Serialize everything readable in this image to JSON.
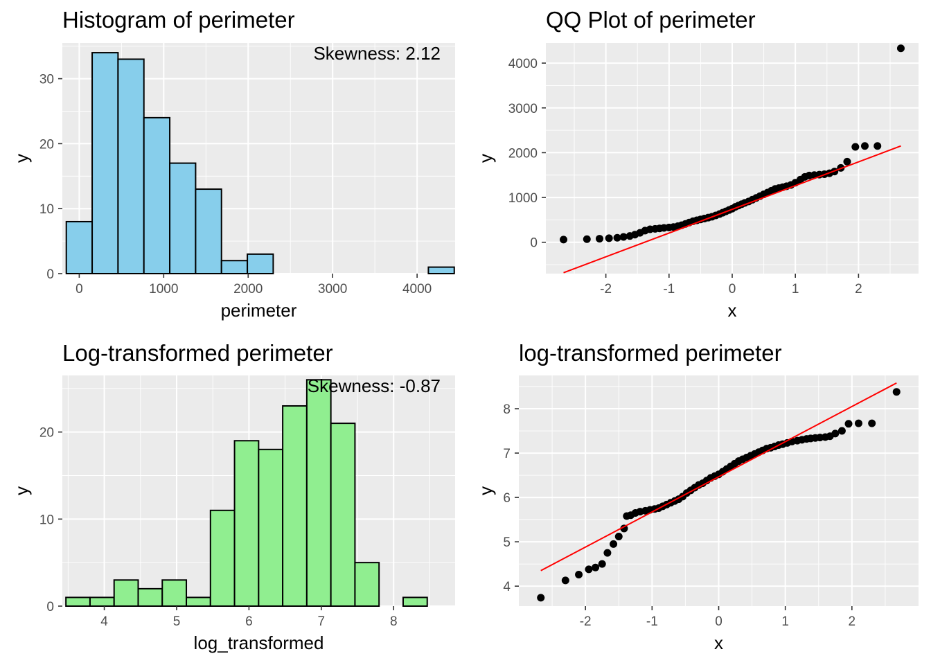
{
  "chart_data": [
    {
      "type": "bar",
      "title": "Histogram of perimeter",
      "xlabel": "perimeter",
      "ylabel": "y",
      "annotation": "Skewness: 2.12",
      "fill_color": "#87ceeb",
      "xlim": [
        -200,
        4450
      ],
      "ylim": [
        0,
        35.5
      ],
      "xticks": [
        0,
        1000,
        2000,
        3000,
        4000
      ],
      "yticks": [
        0,
        10,
        20,
        30
      ],
      "bin_width": 306.2,
      "bin_centers": [
        0,
        306.2,
        612.4,
        918.6,
        1224.8,
        1531.0,
        1837.2,
        2143.4,
        2449.6,
        2755.8,
        3062.0,
        3368.2,
        3674.4,
        3980.6,
        4286.8
      ],
      "values": [
        8,
        34,
        33,
        24,
        17,
        13,
        2,
        3,
        0,
        0,
        0,
        0,
        0,
        0,
        1
      ]
    },
    {
      "type": "scatter",
      "title": "QQ Plot of perimeter",
      "xlabel": "x",
      "ylabel": "y",
      "xlim": [
        -2.95,
        2.95
      ],
      "ylim": [
        -700,
        4450
      ],
      "xticks": [
        -2,
        -1,
        0,
        1,
        2
      ],
      "yticks": [
        0,
        1000,
        2000,
        3000,
        4000
      ],
      "line": {
        "x": [
          -2.67,
          2.67
        ],
        "y": [
          -680,
          2150
        ],
        "color": "#ff0000"
      },
      "points": [
        [
          -2.67,
          60
        ],
        [
          -2.3,
          70
        ],
        [
          -2.1,
          80
        ],
        [
          -1.95,
          90
        ],
        [
          -1.82,
          100
        ],
        [
          -1.72,
          120
        ],
        [
          -1.62,
          140
        ],
        [
          -1.54,
          170
        ],
        [
          -1.46,
          210
        ],
        [
          -1.38,
          260
        ],
        [
          -1.3,
          290
        ],
        [
          -1.22,
          300
        ],
        [
          -1.15,
          310
        ],
        [
          -1.08,
          320
        ],
        [
          -1.0,
          330
        ],
        [
          -0.93,
          340
        ],
        [
          -0.86,
          360
        ],
        [
          -0.8,
          380
        ],
        [
          -0.74,
          410
        ],
        [
          -0.68,
          440
        ],
        [
          -0.62,
          470
        ],
        [
          -0.56,
          490
        ],
        [
          -0.5,
          510
        ],
        [
          -0.44,
          530
        ],
        [
          -0.38,
          550
        ],
        [
          -0.32,
          570
        ],
        [
          -0.26,
          600
        ],
        [
          -0.2,
          630
        ],
        [
          -0.15,
          660
        ],
        [
          -0.1,
          690
        ],
        [
          -0.05,
          720
        ],
        [
          0.0,
          750
        ],
        [
          0.05,
          790
        ],
        [
          0.1,
          820
        ],
        [
          0.15,
          850
        ],
        [
          0.2,
          880
        ],
        [
          0.26,
          910
        ],
        [
          0.32,
          950
        ],
        [
          0.38,
          990
        ],
        [
          0.44,
          1030
        ],
        [
          0.5,
          1070
        ],
        [
          0.56,
          1110
        ],
        [
          0.62,
          1150
        ],
        [
          0.68,
          1190
        ],
        [
          0.74,
          1210
        ],
        [
          0.8,
          1230
        ],
        [
          0.86,
          1250
        ],
        [
          0.93,
          1280
        ],
        [
          1.0,
          1330
        ],
        [
          1.08,
          1400
        ],
        [
          1.15,
          1460
        ],
        [
          1.22,
          1490
        ],
        [
          1.3,
          1500
        ],
        [
          1.38,
          1510
        ],
        [
          1.46,
          1520
        ],
        [
          1.54,
          1540
        ],
        [
          1.62,
          1580
        ],
        [
          1.72,
          1660
        ],
        [
          1.82,
          1800
        ],
        [
          1.95,
          2130
        ],
        [
          2.1,
          2150
        ],
        [
          2.3,
          2150
        ],
        [
          2.67,
          4330
        ]
      ]
    },
    {
      "type": "bar",
      "title": "Log-transformed perimeter",
      "xlabel": "log_transformed",
      "ylabel": "y",
      "annotation": "Skewness: -0.87",
      "fill_color": "#90ee90",
      "xlim": [
        3.42,
        8.85
      ],
      "ylim": [
        0,
        26.5
      ],
      "xticks": [
        4,
        5,
        6,
        7,
        8
      ],
      "yticks": [
        0,
        10,
        20
      ],
      "bin_width": 0.333,
      "bin_centers": [
        3.636,
        3.969,
        4.302,
        4.635,
        4.968,
        5.301,
        5.634,
        5.967,
        6.3,
        6.633,
        6.966,
        7.299,
        7.632,
        7.965,
        8.298
      ],
      "values": [
        1,
        1,
        3,
        2,
        3,
        1,
        11,
        19,
        18,
        23,
        26,
        21,
        5,
        0,
        1
      ]
    },
    {
      "type": "scatter",
      "title": "log-transformed perimeter",
      "xlabel": "x",
      "ylabel": "y",
      "xlim": [
        -3.0,
        3.0
      ],
      "ylim": [
        3.55,
        8.75
      ],
      "xticks": [
        -2,
        -1,
        0,
        1,
        2
      ],
      "yticks": [
        4,
        5,
        6,
        7,
        8
      ],
      "line": {
        "x": [
          -2.67,
          2.67
        ],
        "y": [
          4.35,
          8.58
        ],
        "color": "#ff0000"
      },
      "points": [
        [
          -2.67,
          3.74
        ],
        [
          -2.3,
          4.13
        ],
        [
          -2.1,
          4.26
        ],
        [
          -1.95,
          4.38
        ],
        [
          -1.85,
          4.42
        ],
        [
          -1.75,
          4.5
        ],
        [
          -1.67,
          4.75
        ],
        [
          -1.58,
          4.95
        ],
        [
          -1.5,
          5.12
        ],
        [
          -1.42,
          5.3
        ],
        [
          -1.38,
          5.58
        ],
        [
          -1.32,
          5.6
        ],
        [
          -1.25,
          5.65
        ],
        [
          -1.18,
          5.68
        ],
        [
          -1.1,
          5.7
        ],
        [
          -1.03,
          5.72
        ],
        [
          -0.96,
          5.74
        ],
        [
          -0.9,
          5.76
        ],
        [
          -0.84,
          5.8
        ],
        [
          -0.78,
          5.84
        ],
        [
          -0.72,
          5.88
        ],
        [
          -0.66,
          5.92
        ],
        [
          -0.6,
          5.96
        ],
        [
          -0.54,
          6.02
        ],
        [
          -0.48,
          6.1
        ],
        [
          -0.42,
          6.16
        ],
        [
          -0.36,
          6.22
        ],
        [
          -0.3,
          6.28
        ],
        [
          -0.24,
          6.32
        ],
        [
          -0.18,
          6.38
        ],
        [
          -0.12,
          6.44
        ],
        [
          -0.06,
          6.48
        ],
        [
          0.0,
          6.52
        ],
        [
          0.06,
          6.58
        ],
        [
          0.12,
          6.64
        ],
        [
          0.18,
          6.7
        ],
        [
          0.24,
          6.76
        ],
        [
          0.3,
          6.82
        ],
        [
          0.36,
          6.86
        ],
        [
          0.42,
          6.9
        ],
        [
          0.48,
          6.94
        ],
        [
          0.54,
          6.98
        ],
        [
          0.6,
          7.02
        ],
        [
          0.66,
          7.06
        ],
        [
          0.72,
          7.1
        ],
        [
          0.78,
          7.12
        ],
        [
          0.84,
          7.15
        ],
        [
          0.9,
          7.18
        ],
        [
          0.96,
          7.2
        ],
        [
          1.03,
          7.23
        ],
        [
          1.1,
          7.26
        ],
        [
          1.18,
          7.28
        ],
        [
          1.25,
          7.3
        ],
        [
          1.32,
          7.32
        ],
        [
          1.38,
          7.33
        ],
        [
          1.45,
          7.34
        ],
        [
          1.52,
          7.35
        ],
        [
          1.6,
          7.36
        ],
        [
          1.67,
          7.38
        ],
        [
          1.75,
          7.44
        ],
        [
          1.85,
          7.5
        ],
        [
          1.95,
          7.66
        ],
        [
          2.1,
          7.67
        ],
        [
          2.3,
          7.67
        ],
        [
          2.67,
          8.38
        ]
      ]
    }
  ]
}
